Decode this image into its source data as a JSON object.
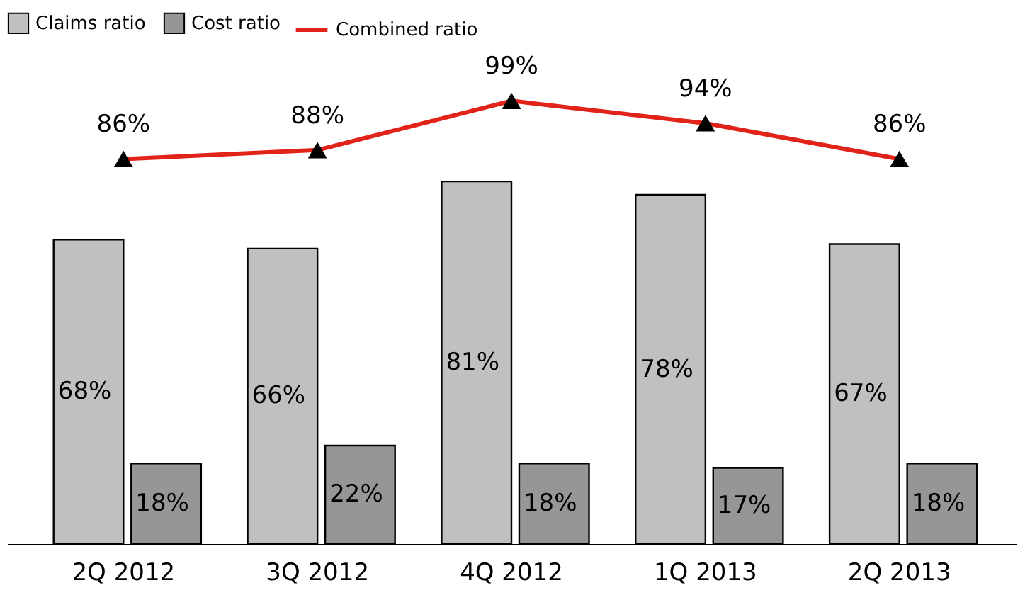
{
  "chart_data": {
    "type": "bar",
    "categories": [
      "2Q 2012",
      "3Q 2012",
      "4Q 2012",
      "1Q 2013",
      "2Q 2013"
    ],
    "series": [
      {
        "name": "Claims ratio",
        "color": "#c0c0c0",
        "values": [
          68,
          66,
          81,
          78,
          67
        ],
        "value_labels": [
          "68%",
          "66%",
          "81%",
          "78%",
          "67%"
        ]
      },
      {
        "name": "Cost ratio",
        "color": "#969696",
        "values": [
          18,
          22,
          18,
          17,
          18
        ],
        "value_labels": [
          "18%",
          "22%",
          "18%",
          "17%",
          "18%"
        ]
      },
      {
        "name": "Combined ratio",
        "type": "line",
        "color": "#e2231a",
        "marker": "triangle",
        "values": [
          86,
          88,
          99,
          94,
          86
        ],
        "value_labels": [
          "86%",
          "88%",
          "99%",
          "94%",
          "86%"
        ]
      }
    ],
    "legend": "top left",
    "tick_labels": "x"
  }
}
